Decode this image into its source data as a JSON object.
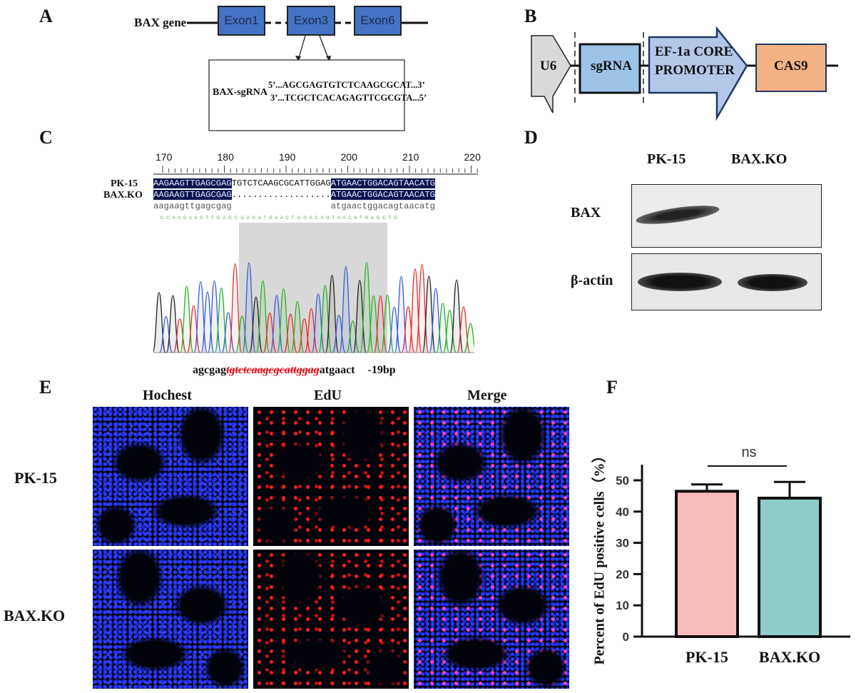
{
  "panels": {
    "a": "A",
    "b": "B",
    "c": "C",
    "d": "D",
    "e": "E",
    "f": "F"
  },
  "panel_a": {
    "gene_label": "BAX gene",
    "exons": [
      "Exon1",
      "Exon3",
      "Exon6"
    ],
    "sgrna_label": "BAX-sgRNA",
    "seq_top": "5’...AGCGAGTGTCTCAAGCGCAT...3’",
    "seq_bottom": "3’...TCGCTCACAGAGTTCGCGTA...5’",
    "exon_color": "#4472c4"
  },
  "panel_b": {
    "elements": [
      "U6",
      "sgRNA",
      "EF-1a CORE",
      "PROMOTER",
      "CAS9"
    ],
    "colors": {
      "u6": "#d9d9d9",
      "sgrna": "#9dc3e6",
      "promoter": "#b4c7e7",
      "cas9": "#f4b183"
    }
  },
  "panel_c": {
    "ruler": [
      "170",
      "180",
      "190",
      "200",
      "210",
      "220"
    ],
    "rows": [
      {
        "label": "PK-15",
        "left": "AAGAAGTTGAGCGAG",
        "mid": "TGTCTCAAGCGCATTGGAG",
        "right": "ATGAACTGGACAGTAACATG"
      },
      {
        "label": "BAX.KO",
        "left": "AAGAAGTTGAGCGAG",
        "mid": "...................",
        "right": "ATGAACTGGACAGTAACATG"
      },
      {
        "label": "",
        "left": "aagaagttgagcgag",
        "mid": "",
        "right": "atgaactggacagtaacatg"
      }
    ],
    "trace_bases": "C C A A G A A G T T G A G C G A G A T G A A C T G G A C A G T A A C A T G A G C T G",
    "deletion": {
      "prefix": "agcgag",
      "deleted": "tgtctcaagcgcattggag",
      "suffix": "atgaact",
      "size": "-19bp"
    }
  },
  "panel_d": {
    "columns": [
      "PK-15",
      "BAX.KO"
    ],
    "rows": [
      "BAX",
      "β-actin"
    ]
  },
  "panel_e": {
    "columns": [
      "Hochest",
      "EdU",
      "Merge"
    ],
    "rows": [
      "PK-15",
      "BAX.KO"
    ]
  },
  "chart_data": {
    "type": "bar",
    "categories": [
      "PK-15",
      "BAX.KO"
    ],
    "values": [
      46.5,
      44.3
    ],
    "error_upper": [
      48.7,
      49.5
    ],
    "colors": [
      "#f8bcbc",
      "#8ecdc8"
    ],
    "ylabel": "Percent of EdU positive cells（%）",
    "yticks": [
      "0",
      "10",
      "20",
      "30",
      "40",
      "50"
    ],
    "ylim": [
      0,
      55
    ],
    "annotation": "ns",
    "grid": false
  }
}
